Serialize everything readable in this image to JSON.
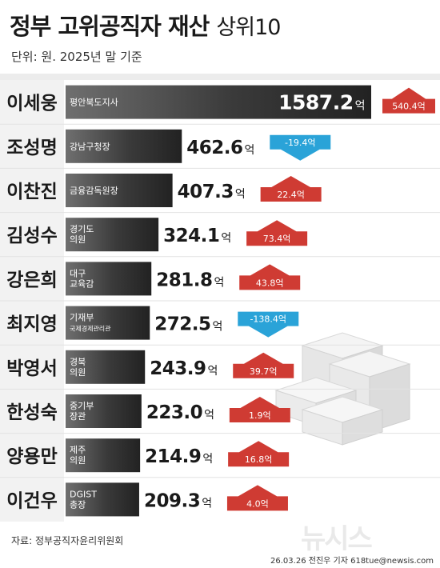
{
  "header": {
    "title": "정부  고위공직자  재산",
    "subtitle": "상위10",
    "unit": "단위: 원. 2025년 말 기준"
  },
  "footer": {
    "source": "자료: 정부공직자윤리위원회",
    "credit": "26.03.26  전진우 기자  618tue@newsis.com",
    "logo": "뉴시스"
  },
  "colors": {
    "bar_dark": "#3a3a3a",
    "bar_light": "#ffffff",
    "increase": "#cf3b33",
    "decrease": "#2aa3d8"
  },
  "chart_data": {
    "type": "bar",
    "orientation": "horizontal",
    "unit": "억",
    "categories": [
      "이세웅",
      "조성명",
      "이찬진",
      "김성수",
      "강은희",
      "최지영",
      "박영서",
      "한성숙",
      "양용만",
      "이건우"
    ],
    "positions": [
      [
        "평안북도지사"
      ],
      [
        "강남구청장"
      ],
      [
        "금융감독원장"
      ],
      [
        "경기도",
        "의원"
      ],
      [
        "대구",
        "교육감"
      ],
      [
        "기재부",
        "국제경제관리관"
      ],
      [
        "경북",
        "의원"
      ],
      [
        "중기부",
        "장관"
      ],
      [
        "제주",
        "의원"
      ],
      [
        "DGIST",
        "총장"
      ]
    ],
    "values": [
      1587.2,
      462.6,
      407.3,
      324.1,
      281.8,
      272.5,
      243.9,
      223.0,
      214.9,
      209.3
    ],
    "value_labels": [
      "1587.2",
      "462.6",
      "407.3",
      "324.1",
      "281.8",
      "272.5",
      "243.9",
      "223.0",
      "214.9",
      "209.3"
    ],
    "changes": [
      540.4,
      -19.4,
      22.4,
      73.4,
      43.8,
      -138.4,
      39.7,
      1.9,
      16.8,
      4.0
    ],
    "change_labels": [
      "540.4억",
      "-19.4억",
      "22.4억",
      "73.4억",
      "43.8억",
      "-138.4억",
      "39.7억",
      "1.9억",
      "16.8억",
      "4.0억"
    ]
  }
}
